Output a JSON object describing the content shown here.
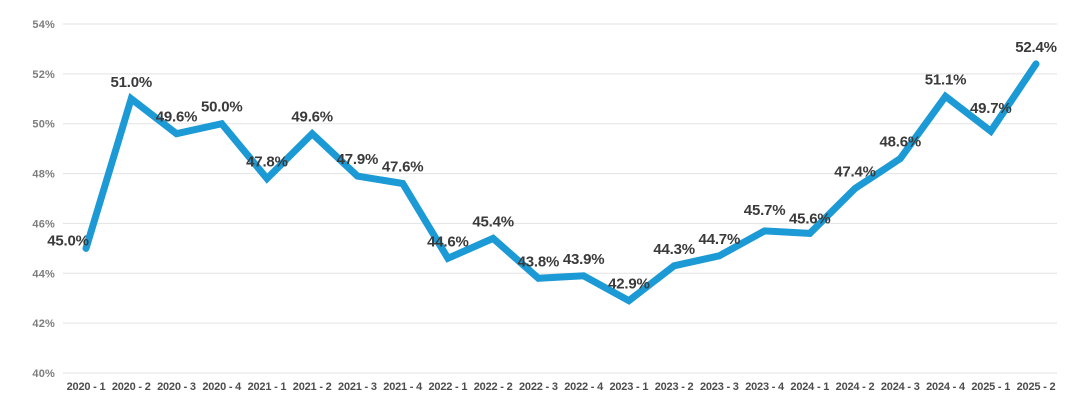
{
  "chart_data": {
    "type": "line",
    "title": "",
    "xlabel": "",
    "ylabel": "",
    "categories": [
      "2020 - 1",
      "2020 - 2",
      "2020 - 3",
      "2020 - 4",
      "2021 - 1",
      "2021 - 2",
      "2021 - 3",
      "2021 - 4",
      "2022 - 1",
      "2022 - 2",
      "2022 - 3",
      "2022 - 4",
      "2023 - 1",
      "2023 - 2",
      "2023 - 3",
      "2023 - 4",
      "2024 - 1",
      "2024 - 2",
      "2024 - 3",
      "2024 - 4",
      "2025 - 1",
      "2025 - 2"
    ],
    "values": [
      45.0,
      51.0,
      49.6,
      50.0,
      47.8,
      49.6,
      47.9,
      47.6,
      44.6,
      45.4,
      43.8,
      43.9,
      42.9,
      44.3,
      44.7,
      45.7,
      45.6,
      47.4,
      48.6,
      51.1,
      49.7,
      52.4
    ],
    "data_labels": [
      "45.0%",
      "51.0%",
      "49.6%",
      "50.0%",
      "47.8%",
      "49.6%",
      "47.9%",
      "47.6%",
      "44.6%",
      "45.4%",
      "43.8%",
      "43.9%",
      "42.9%",
      "44.3%",
      "44.7%",
      "45.7%",
      "45.6%",
      "47.4%",
      "48.6%",
      "51.1%",
      "49.7%",
      "52.4%"
    ],
    "y_tick_labels": [
      "54%",
      "52%",
      "50%",
      "48%",
      "46%",
      "44%",
      "42%",
      "40%"
    ],
    "ylim": [
      40,
      54
    ],
    "grid": true,
    "legend": "none",
    "colors": {
      "line": "#1b9ad5",
      "data_label": "#3a3a3a",
      "x_tick": "#4d4d4d",
      "y_tick": "#7d7d7d",
      "grid_line": "#e3e3e3",
      "background": "#ffffff"
    }
  }
}
